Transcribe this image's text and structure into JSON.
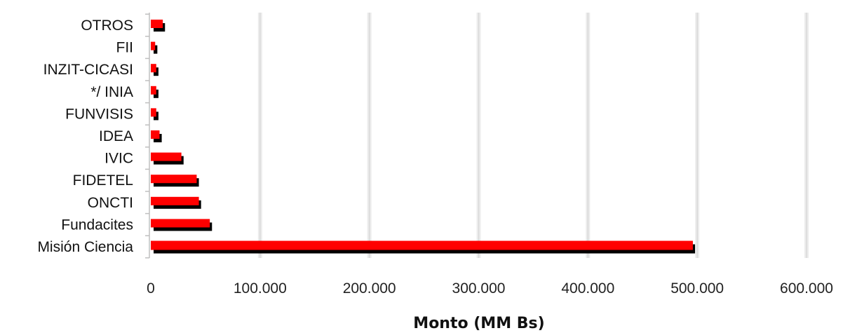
{
  "chart_data": {
    "type": "bar",
    "orientation": "horizontal",
    "categories": [
      "OTROS",
      "FII",
      "INZIT-CICASI",
      "*/ INIA",
      "FUNVISIS",
      "IDEA",
      "IVIC",
      "FIDETEL",
      "ONCTI",
      "Fundacites",
      "Misión Ciencia"
    ],
    "series": [
      {
        "values": [
          13000,
          6000,
          7000,
          7000,
          7000,
          10000,
          30000,
          44000,
          46000,
          56000,
          498000
        ]
      },
      {
        "values": [
          11000,
          4000,
          5000,
          5000,
          5000,
          8000,
          28000,
          42000,
          44000,
          54000,
          496000
        ]
      }
    ],
    "xlim": [
      0,
      600000
    ],
    "xticks": [
      0,
      100000,
      200000,
      300000,
      400000,
      500000,
      600000
    ],
    "xtick_labels": [
      "0",
      "100.000",
      "200.000",
      "300.000",
      "400.000",
      "500.000",
      "600.000"
    ],
    "xlabel": "Monto (MM Bs)",
    "ylabel": "",
    "title": "",
    "grid": "vertical",
    "legend": "none",
    "colors": {
      "front": "#ff0000",
      "back": "#000000",
      "grid": "#d9d9d9",
      "axis": "#bfbfbf"
    }
  }
}
